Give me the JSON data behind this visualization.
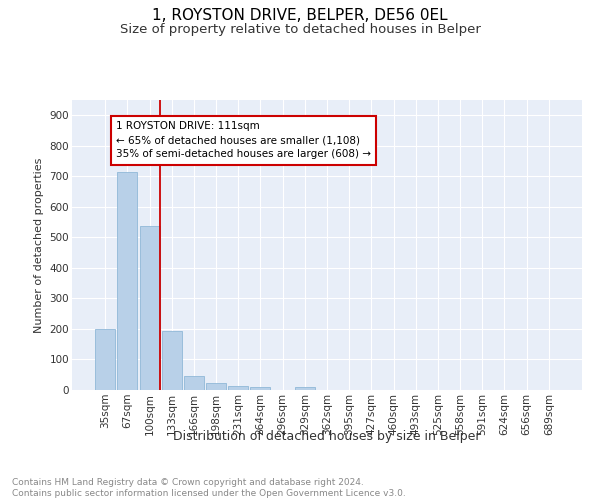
{
  "title": "1, ROYSTON DRIVE, BELPER, DE56 0EL",
  "subtitle": "Size of property relative to detached houses in Belper",
  "xlabel": "Distribution of detached houses by size in Belper",
  "ylabel": "Number of detached properties",
  "categories": [
    "35sqm",
    "67sqm",
    "100sqm",
    "133sqm",
    "166sqm",
    "198sqm",
    "231sqm",
    "264sqm",
    "296sqm",
    "329sqm",
    "362sqm",
    "395sqm",
    "427sqm",
    "460sqm",
    "493sqm",
    "525sqm",
    "558sqm",
    "591sqm",
    "624sqm",
    "656sqm",
    "689sqm"
  ],
  "values": [
    200,
    715,
    537,
    192,
    47,
    22,
    14,
    11,
    0,
    10,
    0,
    0,
    0,
    0,
    0,
    0,
    0,
    0,
    0,
    0,
    0
  ],
  "bar_color": "#b8d0e8",
  "bar_edge_color": "#90b8d8",
  "vline_color": "#cc0000",
  "annotation_text": "1 ROYSTON DRIVE: 111sqm\n← 65% of detached houses are smaller (1,108)\n35% of semi-detached houses are larger (608) →",
  "annotation_box_color": "#ffffff",
  "annotation_box_edge_color": "#cc0000",
  "ylim": [
    0,
    950
  ],
  "yticks": [
    0,
    100,
    200,
    300,
    400,
    500,
    600,
    700,
    800,
    900
  ],
  "background_color": "#e8eef8",
  "grid_color": "#ffffff",
  "footnote": "Contains HM Land Registry data © Crown copyright and database right 2024.\nContains public sector information licensed under the Open Government Licence v3.0.",
  "title_fontsize": 11,
  "subtitle_fontsize": 9.5,
  "xlabel_fontsize": 9,
  "ylabel_fontsize": 8,
  "tick_fontsize": 7.5,
  "annotation_fontsize": 7.5,
  "footnote_fontsize": 6.5
}
